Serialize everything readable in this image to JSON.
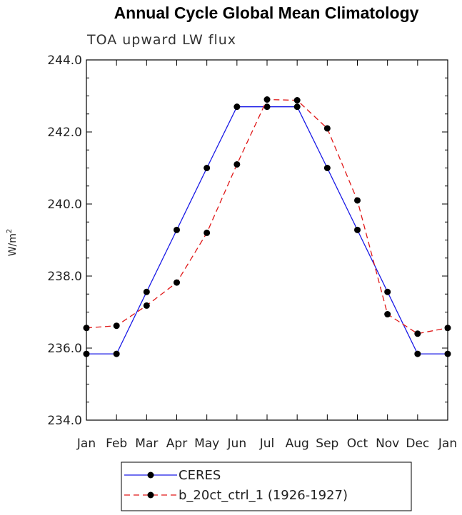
{
  "chart_data": {
    "type": "line",
    "title": "Annual Cycle Global Mean Climatology",
    "subtitle": "TOA upward LW flux",
    "ylabel": "W/m",
    "ylabel_sup": "2",
    "ylim": [
      234.0,
      244.0
    ],
    "yticks": [
      234.0,
      236.0,
      238.0,
      240.0,
      242.0,
      244.0
    ],
    "ytick_labels": [
      "234.0",
      "236.0",
      "238.0",
      "240.0",
      "242.0",
      "244.0"
    ],
    "categories": [
      "Jan",
      "Feb",
      "Mar",
      "Apr",
      "May",
      "Jun",
      "Jul",
      "Aug",
      "Sep",
      "Oct",
      "Nov",
      "Dec",
      "Jan"
    ],
    "grid": false,
    "legend_position": "bottom-center",
    "series": [
      {
        "name": "CERES",
        "color": "#1a1ae6",
        "dash": "solid",
        "values": [
          235.84,
          235.84,
          237.56,
          239.28,
          241.0,
          242.7,
          242.7,
          242.7,
          241.0,
          239.28,
          237.56,
          235.84,
          235.84
        ]
      },
      {
        "name": "b_20ct_ctrl_1 (1926-1927)",
        "color": "#e01818",
        "dash": "dashed",
        "values": [
          236.56,
          236.62,
          237.18,
          237.82,
          239.2,
          241.1,
          242.9,
          242.88,
          242.1,
          240.1,
          236.94,
          236.4,
          236.56
        ]
      }
    ]
  }
}
